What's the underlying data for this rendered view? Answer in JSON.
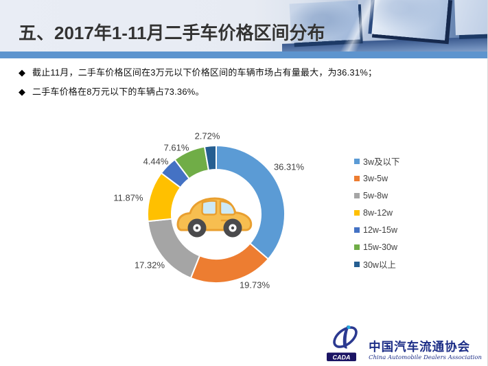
{
  "slide": {
    "title": "五、2017年1-11月二手车价格区间分布",
    "bullet_marker": "◆",
    "bullets": [
      "截止11月，二手车价格区间在3万元以下价格区间的车辆市场占有量最大，为36.31%；",
      "二手车价格在8万元以下的车辆占73.36%。"
    ]
  },
  "chart_data": {
    "type": "pie",
    "subtype": "donut",
    "title": "",
    "categories": [
      "3w及以下",
      "3w-5w",
      "5w-8w",
      "8w-12w",
      "12w-15w",
      "15w-30w",
      "30w以上"
    ],
    "values": [
      36.31,
      19.73,
      17.32,
      11.87,
      4.44,
      7.61,
      2.72
    ],
    "labels": [
      "36.31%",
      "19.73%",
      "17.32%",
      "11.87%",
      "4.44%",
      "7.61%",
      "2.72%"
    ],
    "colors": [
      "#5B9BD5",
      "#ED7D31",
      "#A5A5A5",
      "#FFC000",
      "#4472C4",
      "#70AD47",
      "#255E91"
    ],
    "start_angle": 0,
    "direction": "clockwise",
    "legend_position": "right",
    "label_position": "outside",
    "label_color": "#404040",
    "center_icon": "car-icon"
  },
  "footer": {
    "logo_acronym": "CADA",
    "logo_cn": "中国汽车流通协会",
    "logo_en": "China Automobile Dealers Association"
  },
  "colors": {
    "accent_bar": "#5D94CE",
    "title_text": "#333333",
    "logo_navy": "#1D2E87"
  }
}
